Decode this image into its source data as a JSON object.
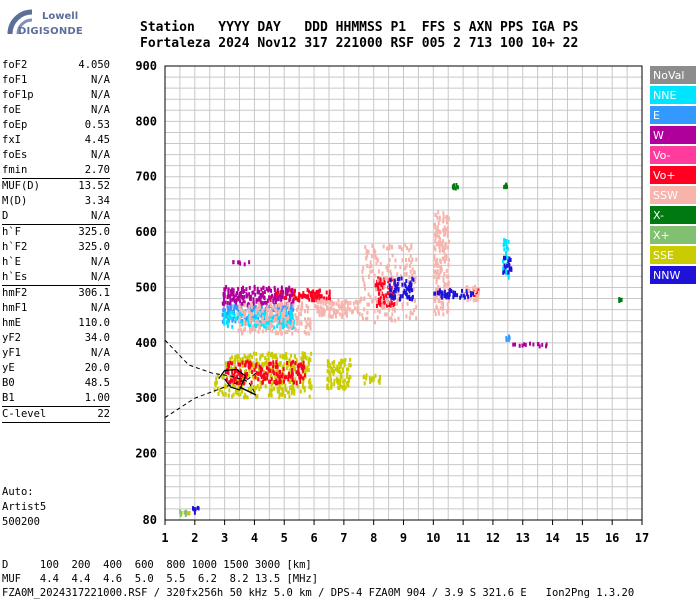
{
  "logo": {
    "line1": "Lowell",
    "line2": "DIGISONDE"
  },
  "header": {
    "line1": "Station   YYYY DAY   DDD HHMMSS P1  FFS S AXN PPS IGA PS",
    "line2": "Fortaleza 2024 Nov12 317 221000 RSF 005 2 713 100 10+ 22"
  },
  "params": [
    {
      "k": "foF2",
      "v": "4.050"
    },
    {
      "k": "foF1",
      "v": "N/A"
    },
    {
      "k": "foF1p",
      "v": "N/A"
    },
    {
      "k": "foE",
      "v": "N/A"
    },
    {
      "k": "foEp",
      "v": "0.53"
    },
    {
      "k": "fxI",
      "v": "4.45"
    },
    {
      "k": "foEs",
      "v": "N/A"
    },
    {
      "k": "fmin",
      "v": "2.70"
    },
    {
      "k": "MUF(D)",
      "v": "13.52",
      "sep": true
    },
    {
      "k": "M(D)",
      "v": "3.34"
    },
    {
      "k": "D",
      "v": "N/A"
    },
    {
      "k": "h`F",
      "v": "325.0",
      "sep": true
    },
    {
      "k": "h`F2",
      "v": "325.0"
    },
    {
      "k": "h`E",
      "v": "N/A"
    },
    {
      "k": "h`Es",
      "v": "N/A"
    },
    {
      "k": "hmF2",
      "v": "306.1",
      "sep": true
    },
    {
      "k": "hmF1",
      "v": "N/A"
    },
    {
      "k": "hmE",
      "v": "110.0"
    },
    {
      "k": "yF2",
      "v": "34.0"
    },
    {
      "k": "yF1",
      "v": "N/A"
    },
    {
      "k": "yE",
      "v": "20.0"
    },
    {
      "k": "B0",
      "v": "48.5"
    },
    {
      "k": "B1",
      "v": "1.00"
    },
    {
      "k": "C-level",
      "v": "22",
      "sep": true
    }
  ],
  "auto": {
    "line1": "Auto:",
    "line2": "Artist5",
    "line3": "500200"
  },
  "footer": {
    "line1": "D     100  200  400  600  800 1000 1500 3000 [km]",
    "line2": "MUF   4.4  4.4  4.6  5.0  5.5  6.2  8.2 13.5 [MHz]",
    "line3": "FZA0M_2024317221000.RSF / 320fx256h 50 kHz 5.0 km / DPS-4 FZA0M 904 / 3.9 S 321.6 E   Ion2Png 1.3.20"
  },
  "colors": {
    "NoVal": "#8c8c8c",
    "NNE": "#00e5ff",
    "E": "#3399ff",
    "W": "#b0009b",
    "Vo-": "#ff3c9e",
    "Vo+": "#ff0020",
    "SSW": "#f7b4ad",
    "X-": "#007a10",
    "X+": "#80c070",
    "SSE": "#c8cc00",
    "NNW": "#1e12d8"
  },
  "chart_data": {
    "type": "scatter",
    "xlim": [
      1,
      17
    ],
    "ylim": [
      80,
      900
    ],
    "xticks": [
      1,
      2,
      3,
      4,
      5,
      6,
      7,
      8,
      9,
      10,
      11,
      12,
      13,
      14,
      15,
      16,
      17
    ],
    "yticks": [
      80,
      200,
      300,
      400,
      500,
      600,
      700,
      800,
      900
    ],
    "grid": true,
    "legend_position": "right",
    "legend": [
      "NoVal",
      "NNE",
      "E",
      "W",
      "Vo-",
      "Vo+",
      "SSW",
      "X-",
      "X+",
      "SSE",
      "NNW"
    ],
    "series": [
      {
        "name": "SSE",
        "clusters": [
          {
            "f0": 2.6,
            "f1": 5.9,
            "h0": 305,
            "h1": 345
          },
          {
            "f0": 3.0,
            "f1": 5.9,
            "h0": 350,
            "h1": 385
          },
          {
            "f0": 6.4,
            "f1": 7.2,
            "h0": 320,
            "h1": 375
          },
          {
            "f0": 7.6,
            "f1": 8.2,
            "h0": 330,
            "h1": 345
          },
          {
            "f0": 1.5,
            "f1": 1.9,
            "h0": 93,
            "h1": 98
          }
        ]
      },
      {
        "name": "Vo+",
        "clusters": [
          {
            "f0": 3.0,
            "f1": 5.7,
            "h0": 330,
            "h1": 370
          },
          {
            "f0": 4.5,
            "f1": 6.5,
            "h0": 480,
            "h1": 500
          },
          {
            "f0": 8.0,
            "f1": 8.7,
            "h0": 470,
            "h1": 520
          },
          {
            "f0": 11.3,
            "f1": 11.5,
            "h0": 490,
            "h1": 500
          }
        ]
      },
      {
        "name": "W",
        "clusters": [
          {
            "f0": 2.9,
            "f1": 5.3,
            "h0": 470,
            "h1": 505
          },
          {
            "f0": 3.2,
            "f1": 3.8,
            "h0": 545,
            "h1": 550
          },
          {
            "f0": 12.5,
            "f1": 13.8,
            "h0": 397,
            "h1": 402
          }
        ]
      },
      {
        "name": "E",
        "clusters": [
          {
            "f0": 2.9,
            "f1": 5.3,
            "h0": 440,
            "h1": 470
          },
          {
            "f0": 12.4,
            "f1": 12.6,
            "h0": 405,
            "h1": 415
          }
        ]
      },
      {
        "name": "NNE",
        "clusters": [
          {
            "f0": 2.9,
            "f1": 5.3,
            "h0": 430,
            "h1": 460
          },
          {
            "f0": 12.3,
            "f1": 12.5,
            "h0": 520,
            "h1": 590
          }
        ]
      },
      {
        "name": "SSW",
        "clusters": [
          {
            "f0": 3.4,
            "f1": 5.9,
            "h0": 420,
            "h1": 475
          },
          {
            "f0": 6.0,
            "f1": 7.5,
            "h0": 450,
            "h1": 480
          },
          {
            "f0": 7.5,
            "f1": 9.4,
            "h0": 440,
            "h1": 580
          },
          {
            "f0": 10.0,
            "f1": 10.5,
            "h0": 455,
            "h1": 640
          },
          {
            "f0": 11.0,
            "f1": 11.5,
            "h0": 480,
            "h1": 505
          }
        ]
      },
      {
        "name": "NNW",
        "clusters": [
          {
            "f0": 8.5,
            "f1": 9.3,
            "h0": 480,
            "h1": 520
          },
          {
            "f0": 10.0,
            "f1": 11.3,
            "h0": 485,
            "h1": 500
          },
          {
            "f0": 12.3,
            "f1": 12.6,
            "h0": 530,
            "h1": 560
          },
          {
            "f0": 1.9,
            "f1": 2.1,
            "h0": 95,
            "h1": 112
          }
        ]
      },
      {
        "name": "X-",
        "clusters": [
          {
            "f0": 10.6,
            "f1": 10.9,
            "h0": 680,
            "h1": 690
          },
          {
            "f0": 12.3,
            "f1": 12.5,
            "h0": 683,
            "h1": 690
          },
          {
            "f0": 16.2,
            "f1": 16.3,
            "h0": 478,
            "h1": 483
          }
        ]
      },
      {
        "name": "X+",
        "clusters": [
          {
            "f0": 1.4,
            "f1": 1.7,
            "h0": 92,
            "h1": 99
          }
        ]
      }
    ],
    "profile": {
      "lower": [
        [
          1.0,
          265
        ],
        [
          2.0,
          300
        ],
        [
          3.0,
          320
        ],
        [
          3.8,
          335
        ],
        [
          4.05,
          345
        ]
      ],
      "upper": [
        [
          1.0,
          405
        ],
        [
          1.8,
          360
        ],
        [
          2.6,
          345
        ],
        [
          3.2,
          340
        ],
        [
          3.8,
          330
        ],
        [
          4.05,
          306
        ]
      ]
    },
    "trace": [
      [
        2.8,
        335
      ],
      [
        3.0,
        350
      ],
      [
        3.4,
        352
      ],
      [
        3.7,
        340
      ],
      [
        3.5,
        315
      ],
      [
        3.2,
        320
      ],
      [
        3.0,
        335
      ]
    ]
  }
}
